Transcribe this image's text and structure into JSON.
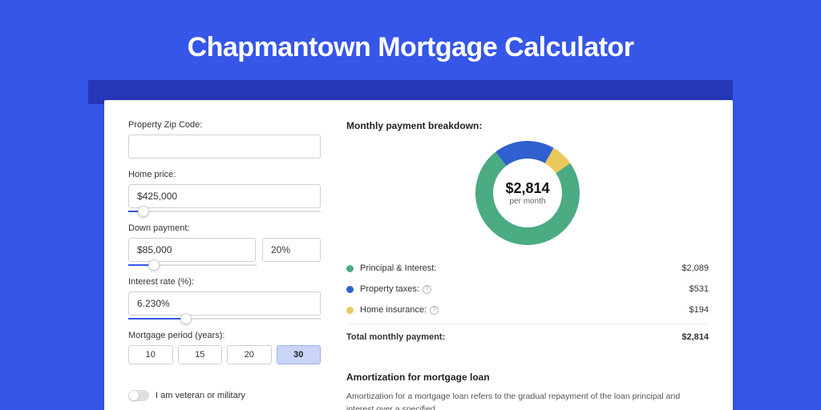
{
  "page": {
    "title": "Chapmantown Mortgage Calculator",
    "background_color": "#3656e8",
    "band_color": "#2638b8",
    "card_color": "#ffffff"
  },
  "form": {
    "zip": {
      "label": "Property Zip Code:",
      "value": ""
    },
    "home_price": {
      "label": "Home price:",
      "value": "$425,000",
      "slider_pct": 8
    },
    "down_payment": {
      "label": "Down payment:",
      "value": "$85,000",
      "pct_value": "20%",
      "slider_pct": 20
    },
    "interest_rate": {
      "label": "Interest rate (%):",
      "value": "6.230%",
      "slider_pct": 30
    },
    "period": {
      "label": "Mortgage period (years):",
      "options": [
        "10",
        "15",
        "20",
        "30"
      ],
      "selected_index": 3
    },
    "veteran": {
      "label": "I am veteran or military",
      "on": false
    }
  },
  "breakdown": {
    "title": "Monthly payment breakdown:",
    "center_amount": "$2,814",
    "center_per": "per month",
    "donut": {
      "type": "donut",
      "outer_radius": 65,
      "inner_radius": 43,
      "background_color": "#ffffff",
      "slices": [
        {
          "label": "Principal & Interest",
          "value": 2089,
          "color": "#4bab82",
          "pct": 0.742
        },
        {
          "label": "Property taxes",
          "value": 531,
          "color": "#2f5fd0",
          "pct": 0.189
        },
        {
          "label": "Home insurance",
          "value": 194,
          "color": "#e9c95b",
          "pct": 0.069
        }
      ],
      "start_angle_deg": -35
    },
    "rows": [
      {
        "dot": "#4bab82",
        "label": "Principal & Interest:",
        "info": false,
        "value": "$2,089"
      },
      {
        "dot": "#2f5fd0",
        "label": "Property taxes:",
        "info": true,
        "value": "$531"
      },
      {
        "dot": "#e9c95b",
        "label": "Home insurance:",
        "info": true,
        "value": "$194"
      }
    ],
    "total": {
      "label": "Total monthly payment:",
      "value": "$2,814"
    }
  },
  "amort": {
    "title": "Amortization for mortgage loan",
    "text": "Amortization for a mortgage loan refers to the gradual repayment of the loan principal and interest over a specified"
  }
}
